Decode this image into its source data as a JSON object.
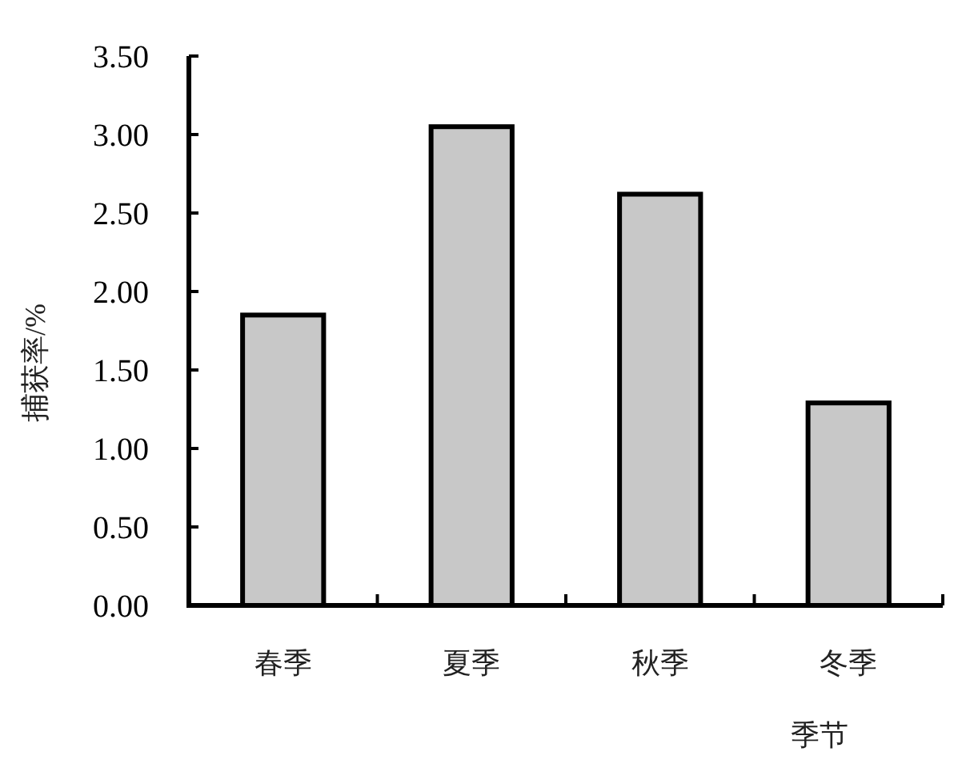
{
  "chart_data": {
    "type": "bar",
    "xlabel": "季节",
    "ylabel": "捕获率/%",
    "categories": [
      "春季",
      "夏季",
      "秋季",
      "冬季"
    ],
    "values": [
      1.85,
      3.05,
      2.62,
      1.29
    ],
    "color": "#c8c8c8",
    "ylim": [
      0,
      3.5
    ],
    "yticks": [
      {
        "value": 0,
        "label": "0.00"
      },
      {
        "value": 0.5,
        "label": "0.50"
      },
      {
        "value": 1,
        "label": "1.00"
      },
      {
        "value": 1.5,
        "label": "1.50"
      },
      {
        "value": 2,
        "label": "2.00"
      },
      {
        "value": 2.5,
        "label": "2.50"
      },
      {
        "value": 3,
        "label": "3.00"
      },
      {
        "value": 3.5,
        "label": "3.50"
      }
    ],
    "grid": false,
    "legend": false
  }
}
